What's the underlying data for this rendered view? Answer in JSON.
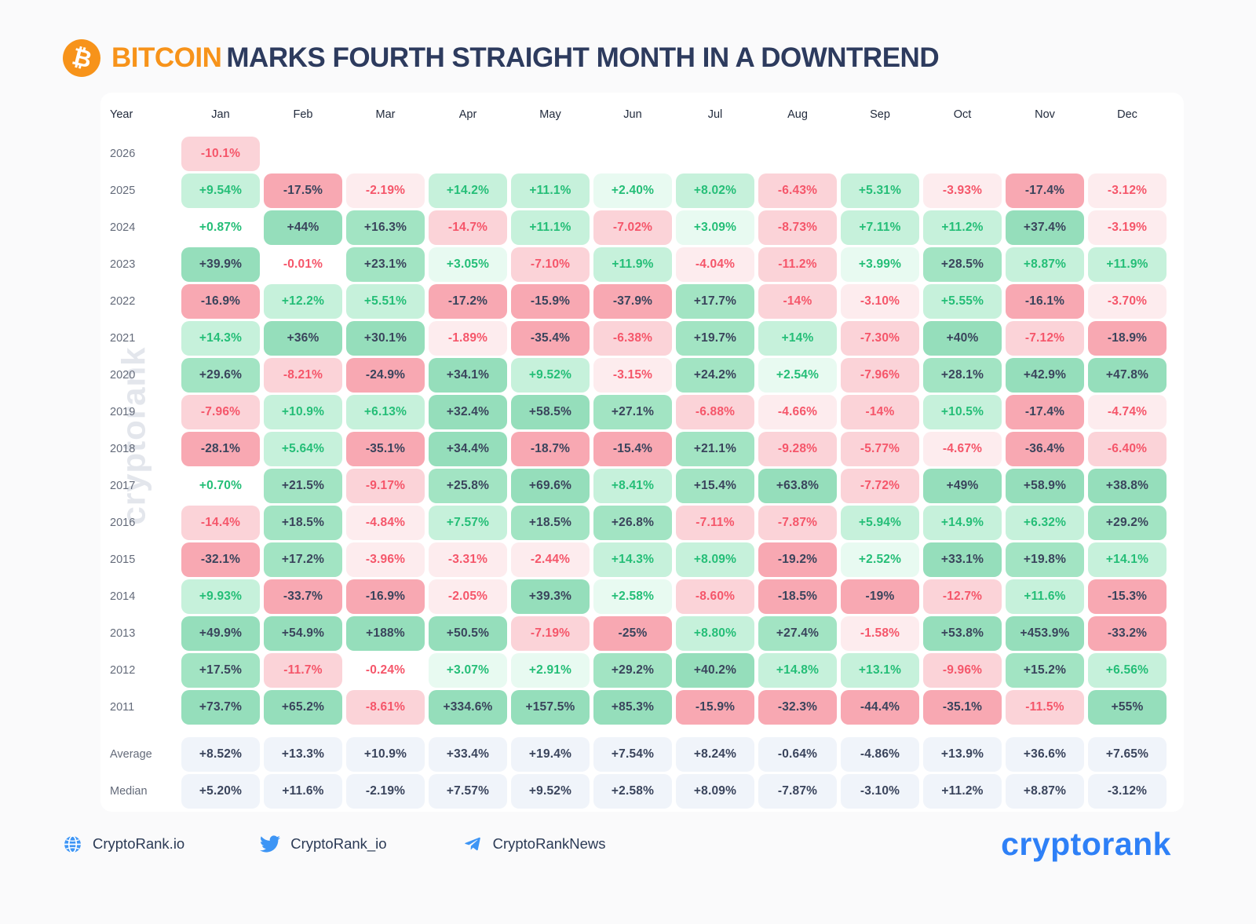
{
  "title": {
    "highlight": "BITCOIN",
    "rest": "MARKS FOURTH STRAIGHT MONTH IN A DOWNTREND"
  },
  "watermark": "cryptorank",
  "chart_data": {
    "type": "heatmap",
    "title": "BITCOIN MARKS FOURTH STRAIGHT MONTH IN A DOWNTREND",
    "unit": "monthly % change",
    "corner_header": "Year",
    "columns": [
      "Jan",
      "Feb",
      "Mar",
      "Apr",
      "May",
      "Jun",
      "Jul",
      "Aug",
      "Sep",
      "Oct",
      "Nov",
      "Dec"
    ],
    "rows": [
      {
        "label": "2026",
        "values": [
          "-10.1%",
          null,
          null,
          null,
          null,
          null,
          null,
          null,
          null,
          null,
          null,
          null
        ]
      },
      {
        "label": "2025",
        "values": [
          "+9.54%",
          "-17.5%",
          "-2.19%",
          "+14.2%",
          "+11.1%",
          "+2.40%",
          "+8.02%",
          "-6.43%",
          "+5.31%",
          "-3.93%",
          "-17.4%",
          "-3.12%"
        ]
      },
      {
        "label": "2024",
        "values": [
          "+0.87%",
          "+44%",
          "+16.3%",
          "-14.7%",
          "+11.1%",
          "-7.02%",
          "+3.09%",
          "-8.73%",
          "+7.11%",
          "+11.2%",
          "+37.4%",
          "-3.19%"
        ]
      },
      {
        "label": "2023",
        "values": [
          "+39.9%",
          "-0.01%",
          "+23.1%",
          "+3.05%",
          "-7.10%",
          "+11.9%",
          "-4.04%",
          "-11.2%",
          "+3.99%",
          "+28.5%",
          "+8.87%",
          "+11.9%"
        ]
      },
      {
        "label": "2022",
        "values": [
          "-16.9%",
          "+12.2%",
          "+5.51%",
          "-17.2%",
          "-15.9%",
          "-37.9%",
          "+17.7%",
          "-14%",
          "-3.10%",
          "+5.55%",
          "-16.1%",
          "-3.70%"
        ]
      },
      {
        "label": "2021",
        "values": [
          "+14.3%",
          "+36%",
          "+30.1%",
          "-1.89%",
          "-35.4%",
          "-6.38%",
          "+19.7%",
          "+14%",
          "-7.30%",
          "+40%",
          "-7.12%",
          "-18.9%"
        ]
      },
      {
        "label": "2020",
        "values": [
          "+29.6%",
          "-8.21%",
          "-24.9%",
          "+34.1%",
          "+9.52%",
          "-3.15%",
          "+24.2%",
          "+2.54%",
          "-7.96%",
          "+28.1%",
          "+42.9%",
          "+47.8%"
        ]
      },
      {
        "label": "2019",
        "values": [
          "-7.96%",
          "+10.9%",
          "+6.13%",
          "+32.4%",
          "+58.5%",
          "+27.1%",
          "-6.88%",
          "-4.66%",
          "-14%",
          "+10.5%",
          "-17.4%",
          "-4.74%"
        ]
      },
      {
        "label": "2018",
        "values": [
          "-28.1%",
          "+5.64%",
          "-35.1%",
          "+34.4%",
          "-18.7%",
          "-15.4%",
          "+21.1%",
          "-9.28%",
          "-5.77%",
          "-4.67%",
          "-36.4%",
          "-6.40%"
        ]
      },
      {
        "label": "2017",
        "values": [
          "+0.70%",
          "+21.5%",
          "-9.17%",
          "+25.8%",
          "+69.6%",
          "+8.41%",
          "+15.4%",
          "+63.8%",
          "-7.72%",
          "+49%",
          "+58.9%",
          "+38.8%"
        ]
      },
      {
        "label": "2016",
        "values": [
          "-14.4%",
          "+18.5%",
          "-4.84%",
          "+7.57%",
          "+18.5%",
          "+26.8%",
          "-7.11%",
          "-7.87%",
          "+5.94%",
          "+14.9%",
          "+6.32%",
          "+29.2%"
        ]
      },
      {
        "label": "2015",
        "values": [
          "-32.1%",
          "+17.2%",
          "-3.96%",
          "-3.31%",
          "-2.44%",
          "+14.3%",
          "+8.09%",
          "-19.2%",
          "+2.52%",
          "+33.1%",
          "+19.8%",
          "+14.1%"
        ]
      },
      {
        "label": "2014",
        "values": [
          "+9.93%",
          "-33.7%",
          "-16.9%",
          "-2.05%",
          "+39.3%",
          "+2.58%",
          "-8.60%",
          "-18.5%",
          "-19%",
          "-12.7%",
          "+11.6%",
          "-15.3%"
        ]
      },
      {
        "label": "2013",
        "values": [
          "+49.9%",
          "+54.9%",
          "+188%",
          "+50.5%",
          "-7.19%",
          "-25%",
          "+8.80%",
          "+27.4%",
          "-1.58%",
          "+53.8%",
          "+453.9%",
          "-33.2%"
        ]
      },
      {
        "label": "2012",
        "values": [
          "+17.5%",
          "-11.7%",
          "-0.24%",
          "+3.07%",
          "+2.91%",
          "+29.2%",
          "+40.2%",
          "+14.8%",
          "+13.1%",
          "-9.96%",
          "+15.2%",
          "+6.56%"
        ]
      },
      {
        "label": "2011",
        "values": [
          "+73.7%",
          "+65.2%",
          "-8.61%",
          "+334.6%",
          "+157.5%",
          "+85.3%",
          "-15.9%",
          "-32.3%",
          "-44.4%",
          "-35.1%",
          "-11.5%",
          "+55%"
        ]
      }
    ],
    "summary_rows": [
      {
        "label": "Average",
        "values": [
          "+8.52%",
          "+13.3%",
          "+10.9%",
          "+33.4%",
          "+19.4%",
          "+7.54%",
          "+8.24%",
          "-0.64%",
          "-4.86%",
          "+13.9%",
          "+36.6%",
          "+7.65%"
        ]
      },
      {
        "label": "Median",
        "values": [
          "+5.20%",
          "+11.6%",
          "-2.19%",
          "+7.57%",
          "+9.52%",
          "+2.58%",
          "+8.09%",
          "-7.87%",
          "-3.10%",
          "+11.2%",
          "+8.87%",
          "-3.12%"
        ]
      }
    ],
    "legend_position": "none",
    "grid": false
  },
  "colors": {
    "accent_orange": "#f7931a",
    "title_navy": "#2d3b5e",
    "text_dark": "#3a445c",
    "text_green": "#24be77",
    "text_red": "#f5566a",
    "bg_green_pale": "#e8faf1",
    "bg_green_light": "#c6f1db",
    "bg_green_mid": "#a2e4c3",
    "bg_green_strong": "#95debb",
    "bg_red_pale": "#fdecee",
    "bg_red_light": "#fbd3d8",
    "bg_red_strong": "#f8a8b2",
    "bg_neutral": "#ffffff",
    "bg_summary": "#f0f4fa",
    "brand_blue": "#2e80f7",
    "icon_blue": "#3d95f5"
  },
  "footer": {
    "website": "CryptoRank.io",
    "twitter": "CryptoRank_io",
    "telegram": "CryptoRankNews",
    "brand": "cryptorank"
  }
}
